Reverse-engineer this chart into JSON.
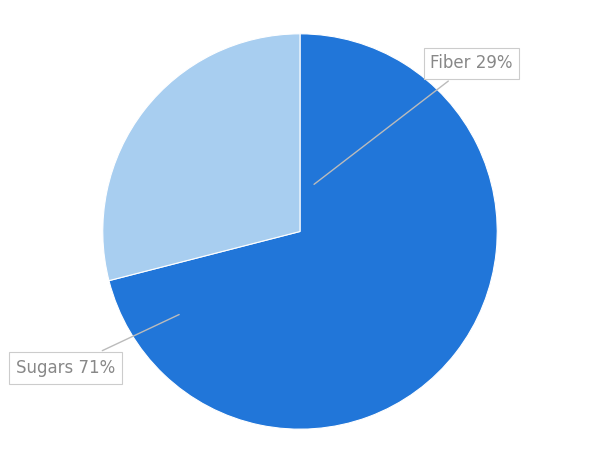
{
  "slices": [
    71,
    29
  ],
  "labels": [
    "Sugars 71%",
    "Fiber 29%"
  ],
  "colors": [
    "#2176d9",
    "#a8cef0"
  ],
  "background_color": "#ffffff",
  "startangle": 90,
  "figsize": [
    6.0,
    4.63
  ],
  "dpi": 100,
  "label_color": "#888888",
  "label_fontsize": 12
}
